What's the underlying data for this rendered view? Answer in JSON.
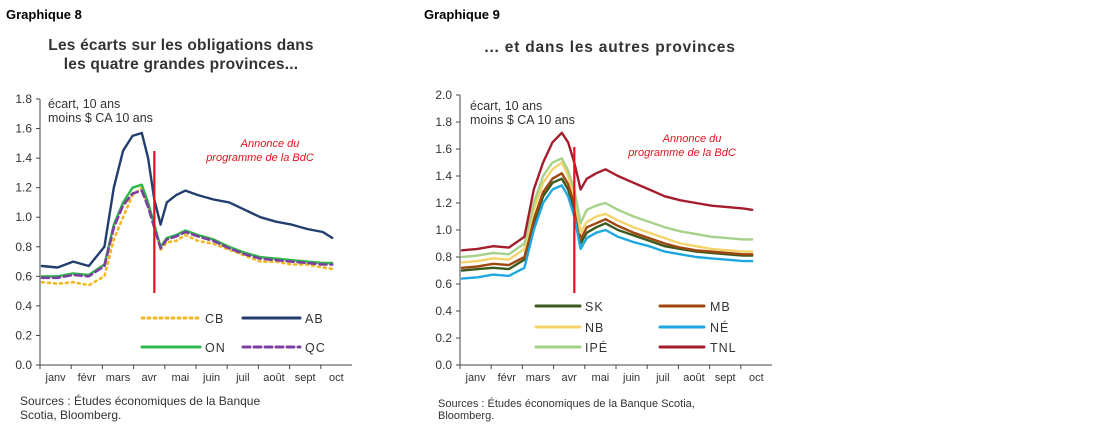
{
  "chart_data": [
    {
      "type": "line",
      "figure_label": "Graphique 8",
      "title_lines": [
        "Les écarts sur les obligations dans",
        "les quatre grandes provinces..."
      ],
      "unit_label_lines": [
        "écart, 10 ans",
        "moins $ CA 10 ans"
      ],
      "annotation_lines": [
        "Annonce du",
        "programme  de la BdC"
      ],
      "annotation_x": 3.6,
      "categories": [
        "janv",
        "févr",
        "mars",
        "avr",
        "mai",
        "juin",
        "juil",
        "août",
        "sept",
        "oct"
      ],
      "ylim": [
        0.0,
        1.8
      ],
      "yticks": [
        "0.0",
        "0.2",
        "0.4",
        "0.6",
        "0.8",
        "1.0",
        "1.2",
        "1.4",
        "1.6",
        "1.8"
      ],
      "legend_placement": "bottom-inside",
      "sources_lines": [
        "Sources : Études économiques de la Banque",
        "Scotia, Bloomberg."
      ],
      "series": [
        {
          "name": "CB",
          "color": "#f2b824",
          "dash": "dot",
          "x": [
            0,
            0.5,
            1.0,
            1.5,
            2.0,
            2.3,
            2.6,
            2.9,
            3.2,
            3.4,
            3.6,
            3.8,
            4.0,
            4.3,
            4.6,
            5.0,
            5.5,
            6.0,
            6.5,
            7.0,
            7.5,
            8.0,
            8.5,
            9.0,
            9.3
          ],
          "values": [
            0.56,
            0.55,
            0.56,
            0.54,
            0.6,
            0.85,
            1.0,
            1.15,
            1.2,
            1.08,
            0.95,
            0.78,
            0.83,
            0.84,
            0.88,
            0.84,
            0.82,
            0.78,
            0.74,
            0.7,
            0.7,
            0.68,
            0.68,
            0.66,
            0.65
          ]
        },
        {
          "name": "AB",
          "color": "#233e6e",
          "dash": "solid",
          "x": [
            0,
            0.5,
            1.0,
            1.5,
            2.0,
            2.3,
            2.6,
            2.9,
            3.2,
            3.4,
            3.6,
            3.8,
            4.0,
            4.3,
            4.6,
            5.0,
            5.5,
            6.0,
            6.5,
            7.0,
            7.5,
            8.0,
            8.5,
            9.0,
            9.3
          ],
          "values": [
            0.67,
            0.66,
            0.7,
            0.67,
            0.8,
            1.2,
            1.45,
            1.55,
            1.57,
            1.4,
            1.12,
            0.95,
            1.1,
            1.15,
            1.18,
            1.15,
            1.12,
            1.1,
            1.05,
            1.0,
            0.97,
            0.95,
            0.92,
            0.9,
            0.86
          ]
        },
        {
          "name": "ON",
          "color": "#2db84a",
          "dash": "solid",
          "x": [
            0,
            0.5,
            1.0,
            1.5,
            2.0,
            2.3,
            2.6,
            2.9,
            3.2,
            3.4,
            3.6,
            3.8,
            4.0,
            4.3,
            4.6,
            5.0,
            5.5,
            6.0,
            6.5,
            7.0,
            7.5,
            8.0,
            8.5,
            9.0,
            9.3
          ],
          "values": [
            0.6,
            0.6,
            0.62,
            0.61,
            0.68,
            0.95,
            1.1,
            1.2,
            1.22,
            1.1,
            0.95,
            0.8,
            0.86,
            0.88,
            0.91,
            0.88,
            0.85,
            0.8,
            0.76,
            0.73,
            0.72,
            0.71,
            0.7,
            0.69,
            0.69
          ]
        },
        {
          "name": "QC",
          "color": "#7b3fa0",
          "dash": "dash",
          "x": [
            0,
            0.5,
            1.0,
            1.5,
            2.0,
            2.3,
            2.6,
            2.9,
            3.2,
            3.4,
            3.6,
            3.8,
            4.0,
            4.3,
            4.6,
            5.0,
            5.5,
            6.0,
            6.5,
            7.0,
            7.5,
            8.0,
            8.5,
            9.0,
            9.3
          ],
          "values": [
            0.59,
            0.59,
            0.61,
            0.6,
            0.67,
            0.93,
            1.08,
            1.16,
            1.18,
            1.07,
            0.93,
            0.79,
            0.85,
            0.87,
            0.9,
            0.87,
            0.84,
            0.79,
            0.75,
            0.72,
            0.71,
            0.7,
            0.69,
            0.68,
            0.68
          ]
        }
      ]
    },
    {
      "type": "line",
      "figure_label": "Graphique 9",
      "title_lines": [
        "... et dans les autres provinces"
      ],
      "unit_label_lines": [
        "écart, 10 ans",
        "moins $ CA 10 ans"
      ],
      "annotation_lines": [
        "Annonce du",
        "programme  de la BdC"
      ],
      "annotation_x": 3.6,
      "categories": [
        "janv",
        "févr",
        "mars",
        "avr",
        "mai",
        "juin",
        "juil",
        "août",
        "sept",
        "oct"
      ],
      "ylim": [
        0.0,
        2.0
      ],
      "yticks": [
        "0.0",
        "0.2",
        "0.4",
        "0.6",
        "0.8",
        "1.0",
        "1.2",
        "1.4",
        "1.6",
        "1.8",
        "2.0"
      ],
      "legend_placement": "bottom-inside",
      "sources_lines": [
        "Sources : Études économiques de la Banque Scotia,",
        "Bloomberg."
      ],
      "series": [
        {
          "name": "SK",
          "color": "#3a5a1e",
          "dash": "solid",
          "x": [
            0,
            0.5,
            1.0,
            1.5,
            2.0,
            2.3,
            2.6,
            2.9,
            3.2,
            3.4,
            3.6,
            3.8,
            4.0,
            4.3,
            4.6,
            5.0,
            5.5,
            6.0,
            6.5,
            7.0,
            7.5,
            8.0,
            8.5,
            9.0,
            9.3
          ],
          "values": [
            0.7,
            0.71,
            0.72,
            0.71,
            0.78,
            1.05,
            1.25,
            1.35,
            1.38,
            1.3,
            1.15,
            0.9,
            0.98,
            1.02,
            1.05,
            1.0,
            0.96,
            0.92,
            0.88,
            0.86,
            0.84,
            0.83,
            0.82,
            0.81,
            0.81
          ]
        },
        {
          "name": "MB",
          "color": "#a0460f",
          "dash": "solid",
          "x": [
            0,
            0.5,
            1.0,
            1.5,
            2.0,
            2.3,
            2.6,
            2.9,
            3.2,
            3.4,
            3.6,
            3.8,
            4.0,
            4.3,
            4.6,
            5.0,
            5.5,
            6.0,
            6.5,
            7.0,
            7.5,
            8.0,
            8.5,
            9.0,
            9.3
          ],
          "values": [
            0.72,
            0.73,
            0.75,
            0.74,
            0.8,
            1.08,
            1.28,
            1.38,
            1.42,
            1.34,
            1.2,
            0.93,
            1.02,
            1.05,
            1.08,
            1.03,
            0.98,
            0.94,
            0.9,
            0.87,
            0.85,
            0.84,
            0.83,
            0.82,
            0.82
          ]
        },
        {
          "name": "NB",
          "color": "#f5d36b",
          "dash": "solid",
          "x": [
            0,
            0.5,
            1.0,
            1.5,
            2.0,
            2.3,
            2.6,
            2.9,
            3.2,
            3.4,
            3.6,
            3.8,
            4.0,
            4.3,
            4.6,
            5.0,
            5.5,
            6.0,
            6.5,
            7.0,
            7.5,
            8.0,
            8.5,
            9.0,
            9.3
          ],
          "values": [
            0.76,
            0.77,
            0.79,
            0.78,
            0.86,
            1.15,
            1.35,
            1.45,
            1.5,
            1.4,
            1.25,
            0.98,
            1.06,
            1.1,
            1.12,
            1.07,
            1.02,
            0.98,
            0.94,
            0.9,
            0.88,
            0.86,
            0.85,
            0.84,
            0.84
          ]
        },
        {
          "name": "NÉ",
          "color": "#1ea7e1",
          "dash": "solid",
          "x": [
            0,
            0.5,
            1.0,
            1.5,
            2.0,
            2.3,
            2.6,
            2.9,
            3.2,
            3.4,
            3.6,
            3.8,
            4.0,
            4.3,
            4.6,
            5.0,
            5.5,
            6.0,
            6.5,
            7.0,
            7.5,
            8.0,
            8.5,
            9.0,
            9.3
          ],
          "values": [
            0.64,
            0.65,
            0.67,
            0.66,
            0.72,
            1.0,
            1.2,
            1.3,
            1.33,
            1.25,
            1.1,
            0.86,
            0.94,
            0.98,
            1.0,
            0.95,
            0.91,
            0.88,
            0.84,
            0.82,
            0.8,
            0.79,
            0.78,
            0.77,
            0.77
          ]
        },
        {
          "name": "IPÉ",
          "color": "#a6d18a",
          "dash": "solid",
          "x": [
            0,
            0.5,
            1.0,
            1.5,
            2.0,
            2.3,
            2.6,
            2.9,
            3.2,
            3.4,
            3.6,
            3.8,
            4.0,
            4.3,
            4.6,
            5.0,
            5.5,
            6.0,
            6.5,
            7.0,
            7.5,
            8.0,
            8.5,
            9.0,
            9.3
          ],
          "values": [
            0.8,
            0.81,
            0.83,
            0.82,
            0.9,
            1.2,
            1.4,
            1.5,
            1.53,
            1.44,
            1.3,
            1.05,
            1.15,
            1.18,
            1.2,
            1.15,
            1.1,
            1.06,
            1.02,
            0.99,
            0.97,
            0.95,
            0.94,
            0.93,
            0.93
          ]
        },
        {
          "name": "TNL",
          "color": "#a51d2d",
          "dash": "solid",
          "x": [
            0,
            0.5,
            1.0,
            1.5,
            2.0,
            2.3,
            2.6,
            2.9,
            3.2,
            3.4,
            3.6,
            3.8,
            4.0,
            4.3,
            4.6,
            5.0,
            5.5,
            6.0,
            6.5,
            7.0,
            7.5,
            8.0,
            8.5,
            9.0,
            9.3
          ],
          "values": [
            0.85,
            0.86,
            0.88,
            0.87,
            0.95,
            1.3,
            1.5,
            1.65,
            1.72,
            1.65,
            1.5,
            1.3,
            1.38,
            1.42,
            1.45,
            1.4,
            1.35,
            1.3,
            1.25,
            1.22,
            1.2,
            1.18,
            1.17,
            1.16,
            1.15
          ]
        }
      ]
    }
  ]
}
